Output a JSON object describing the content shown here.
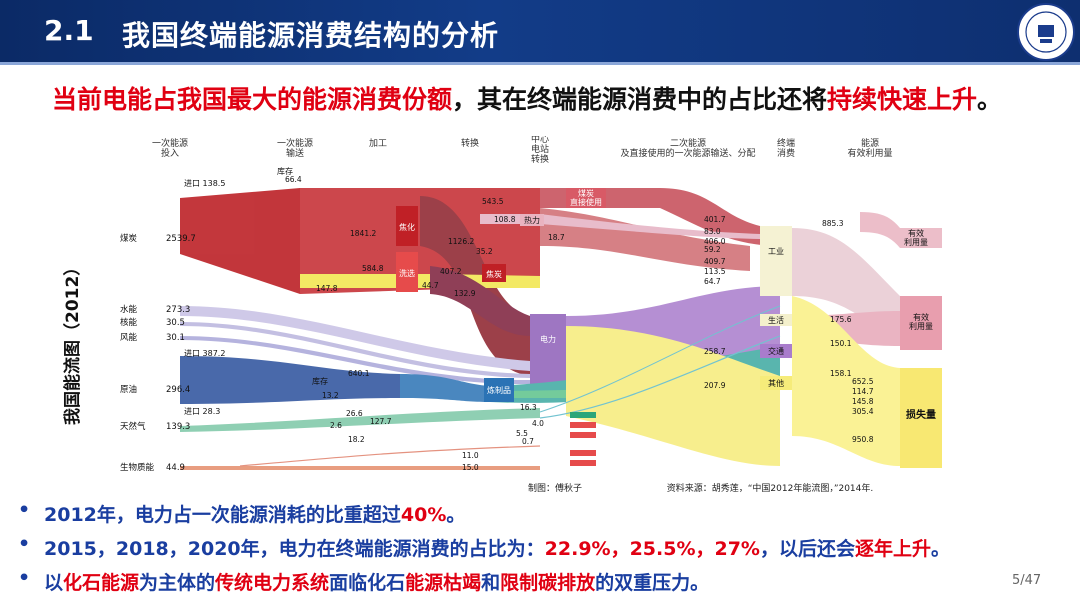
{
  "header": {
    "section_number": "2.1",
    "title": "我国终端能源消费结构的分析",
    "background_color": "#123c88"
  },
  "headline": {
    "part1": "当前电能占我国最大的能源消费份额",
    "part2": "，其在终端能源消费中的占比还将",
    "part3": "持续快速上升",
    "part4": "。"
  },
  "diagram": {
    "side_label": "我国能流图（2012）",
    "columns": {
      "primary_input": "一次能源\n投入",
      "primary_transport": "一次能源\n输送",
      "processing": "加工",
      "conversion": "转换",
      "power_station": "中心\n电站\n转换",
      "secondary": "二次能源\n及直接使用的一次能源输送、分配",
      "terminal": "终端\n消费",
      "efficiency": "能源\n有效利用量"
    },
    "sources": [
      {
        "name": "煤炭",
        "value": "2539.7"
      },
      {
        "name": "水能",
        "value": "273.3"
      },
      {
        "name": "核能",
        "value": "30.5"
      },
      {
        "name": "风能",
        "value": "30.1"
      },
      {
        "name": "原油",
        "value": "296.4"
      },
      {
        "name": "天然气",
        "value": "139.3"
      },
      {
        "name": "生物质能",
        "value": "44.9"
      }
    ],
    "imports": [
      {
        "name": "进口",
        "value": "138.5"
      },
      {
        "name": "进口",
        "value": "387.2"
      },
      {
        "name": "进口",
        "value": "28.3"
      }
    ],
    "nodes": {
      "storage_coal": "库存",
      "storage_oil": "库存",
      "coal_wash": "洗选",
      "coking": "焦炭",
      "coke_gas": "焦化",
      "oil_refining": "炼制品",
      "power": "电力",
      "heat": "热力",
      "coal_direct": "煤炭\n直接使用",
      "industry": "工业",
      "residential": "生活",
      "transport": "交通",
      "other": "其他",
      "effective": "有效\n利用量",
      "effective_top": "有效\n利用量",
      "loss": "损失量"
    },
    "flow_values": [
      "66.4",
      "1841.2",
      "543.5",
      "108.8",
      "1126.2",
      "35.2",
      "584.8",
      "407.2",
      "147.8",
      "44.7",
      "132.9",
      "18.7",
      "640.1",
      "13.2",
      "26.6",
      "127.7",
      "16.3",
      "18.2",
      "11.0",
      "15.0",
      "401.7",
      "83.0",
      "406.0",
      "59.2",
      "409.7",
      "113.5",
      "64.7",
      "258.7",
      "207.9",
      "885.3",
      "175.6",
      "150.1",
      "158.1",
      "652.5",
      "114.7",
      "145.8",
      "305.4",
      "950.8",
      "2.6",
      "4.0",
      "5.5",
      "0.7"
    ],
    "credits": {
      "drawn_by": "制图：傅秋子",
      "source": "资料来源：胡秀莲，“中国2012年能流图，”2014年."
    }
  },
  "bullets": [
    {
      "parts": [
        {
          "t": "2012年，电力占一次能源消耗的比重超过",
          "c": "#1a3ea0"
        },
        {
          "t": "40%",
          "c": "#e00012"
        },
        {
          "t": "。",
          "c": "#1a3ea0"
        }
      ]
    },
    {
      "parts": [
        {
          "t": "2015，2018，2020年，电力在终端能源消费的占比为：",
          "c": "#1a3ea0"
        },
        {
          "t": "22.9%，25.5%，27%",
          "c": "#e00012"
        },
        {
          "t": "，以后还会",
          "c": "#1a3ea0"
        },
        {
          "t": "逐年上升",
          "c": "#e00012"
        },
        {
          "t": "。",
          "c": "#1a3ea0"
        }
      ]
    },
    {
      "parts": [
        {
          "t": "以",
          "c": "#1a3ea0"
        },
        {
          "t": "化石能源",
          "c": "#e00012"
        },
        {
          "t": "为主体的",
          "c": "#1a3ea0"
        },
        {
          "t": "传统电力系统",
          "c": "#e00012"
        },
        {
          "t": "面临化石",
          "c": "#1a3ea0"
        },
        {
          "t": "能源枯竭",
          "c": "#e00012"
        },
        {
          "t": "和",
          "c": "#1a3ea0"
        },
        {
          "t": "限制碳排放",
          "c": "#e00012"
        },
        {
          "t": "的双重压力。",
          "c": "#1a3ea0"
        }
      ]
    }
  ],
  "bullet_glyph": "•",
  "page_number": "5/47",
  "colors": {
    "accent_red": "#e00012",
    "text_blue": "#1a3ea0",
    "header_blue": "#123c88"
  }
}
